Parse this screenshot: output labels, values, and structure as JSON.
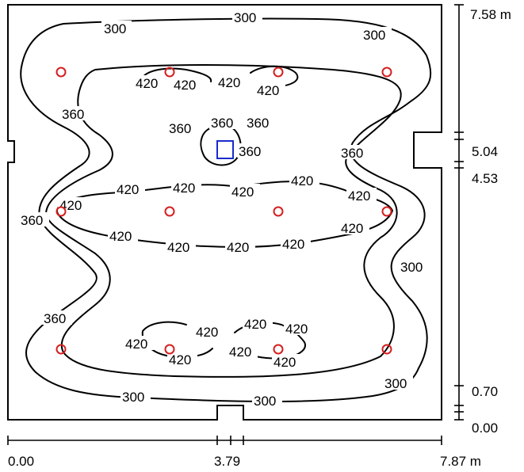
{
  "contour_labels": {
    "c300": "300",
    "c360": "360",
    "c420": "420"
  },
  "right_axis": {
    "top": "7.58 m",
    "upper_opening_top": "5.04",
    "upper_opening_bottom": "4.53",
    "lower": "0.70",
    "bottom": "0.00"
  },
  "bottom_axis": {
    "left": "0.00",
    "middle": "3.79",
    "right": "7.87 m"
  },
  "colors": {
    "contour": "#000000",
    "luminaire": "#d42020",
    "sensor": "#1a2ccc"
  }
}
